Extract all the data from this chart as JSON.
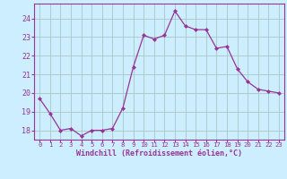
{
  "x": [
    0,
    1,
    2,
    3,
    4,
    5,
    6,
    7,
    8,
    9,
    10,
    11,
    12,
    13,
    14,
    15,
    16,
    17,
    18,
    19,
    20,
    21,
    22,
    23
  ],
  "y": [
    19.7,
    18.9,
    18.0,
    18.1,
    17.7,
    18.0,
    18.0,
    18.1,
    19.2,
    21.4,
    23.1,
    22.9,
    23.1,
    24.4,
    23.6,
    23.4,
    23.4,
    22.4,
    22.5,
    21.3,
    20.6,
    20.2,
    20.1,
    20.0
  ],
  "line_color": "#993399",
  "marker": "D",
  "marker_size": 2.0,
  "bg_color": "#cceeff",
  "grid_color": "#aacccc",
  "xlabel": "Windchill (Refroidissement éolien,°C)",
  "xlabel_color": "#993399",
  "tick_color": "#993399",
  "ylim": [
    17.5,
    24.8
  ],
  "yticks": [
    18,
    19,
    20,
    21,
    22,
    23,
    24
  ],
  "xticks": [
    0,
    1,
    2,
    3,
    4,
    5,
    6,
    7,
    8,
    9,
    10,
    11,
    12,
    13,
    14,
    15,
    16,
    17,
    18,
    19,
    20,
    21,
    22,
    23
  ]
}
